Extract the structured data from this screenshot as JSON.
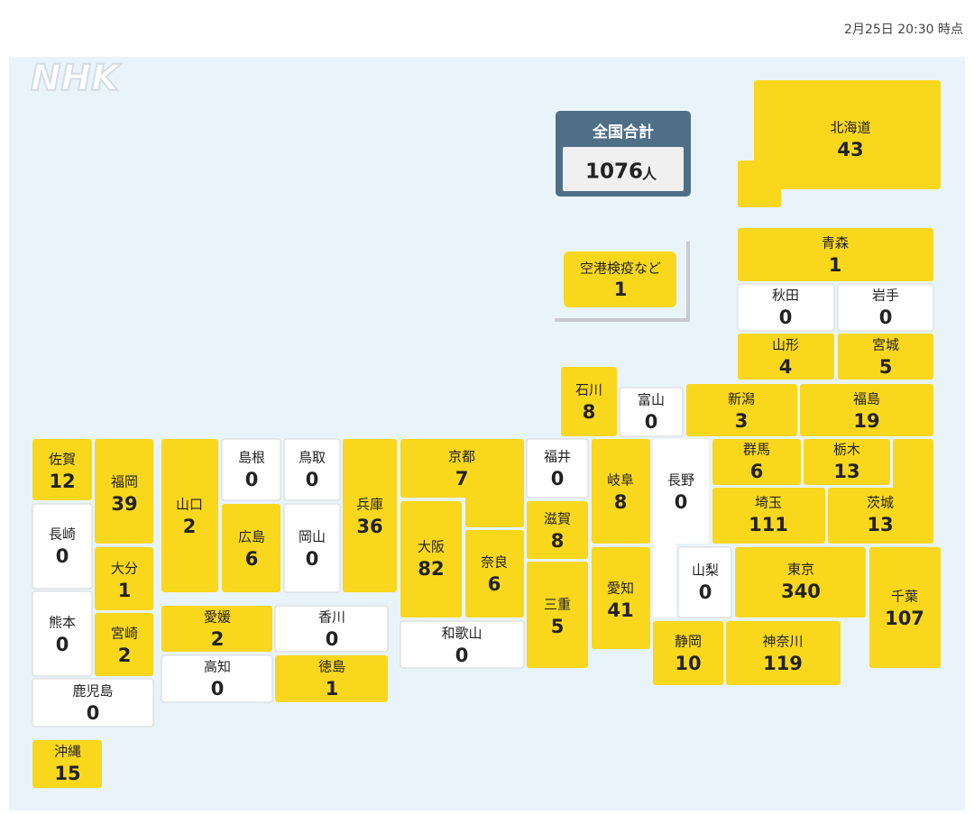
{
  "header": {
    "timestamp": "2月25日 20:30 時点",
    "logo": "NHK"
  },
  "total": {
    "label": "全国合計",
    "value": 1076,
    "unit": "人"
  },
  "airport": {
    "label": "空港検疫など",
    "value": 1
  },
  "prefectures": [
    {
      "name": "北海道",
      "value": 43
    },
    {
      "name": "青森",
      "value": 1
    },
    {
      "name": "秋田",
      "value": 0
    },
    {
      "name": "岩手",
      "value": 0
    },
    {
      "name": "山形",
      "value": 4
    },
    {
      "name": "宮城",
      "value": 5
    },
    {
      "name": "新潟",
      "value": 3
    },
    {
      "name": "福島",
      "value": 19
    },
    {
      "name": "石川",
      "value": 8
    },
    {
      "name": "富山",
      "value": 0
    },
    {
      "name": "群馬",
      "value": 6
    },
    {
      "name": "栃木",
      "value": 13
    },
    {
      "name": "茨城",
      "value": 13
    },
    {
      "name": "埼玉",
      "value": 111
    },
    {
      "name": "長野",
      "value": 0
    },
    {
      "name": "山梨",
      "value": 0
    },
    {
      "name": "東京",
      "value": 340
    },
    {
      "name": "千葉",
      "value": 107
    },
    {
      "name": "神奈川",
      "value": 119
    },
    {
      "name": "静岡",
      "value": 10
    },
    {
      "name": "岐阜",
      "value": 8
    },
    {
      "name": "愛知",
      "value": 41
    },
    {
      "name": "福井",
      "value": 0
    },
    {
      "name": "滋賀",
      "value": 8
    },
    {
      "name": "三重",
      "value": 5
    },
    {
      "name": "京都",
      "value": 7
    },
    {
      "name": "大阪",
      "value": 82
    },
    {
      "name": "奈良",
      "value": 6
    },
    {
      "name": "和歌山",
      "value": 0
    },
    {
      "name": "兵庫",
      "value": 36
    },
    {
      "name": "鳥取",
      "value": 0
    },
    {
      "name": "岡山",
      "value": 0
    },
    {
      "name": "島根",
      "value": 0
    },
    {
      "name": "広島",
      "value": 6
    },
    {
      "name": "山口",
      "value": 2
    },
    {
      "name": "愛媛",
      "value": 2
    },
    {
      "name": "香川",
      "value": 0
    },
    {
      "name": "高知",
      "value": 0
    },
    {
      "name": "徳島",
      "value": 1
    },
    {
      "name": "佐賀",
      "value": 12
    },
    {
      "name": "福岡",
      "value": 39
    },
    {
      "name": "長崎",
      "value": 0
    },
    {
      "name": "大分",
      "value": 1
    },
    {
      "name": "熊本",
      "value": 0
    },
    {
      "name": "宮崎",
      "value": 2
    },
    {
      "name": "鹿児島",
      "value": 0
    },
    {
      "name": "沖縄",
      "value": 15
    }
  ]
}
